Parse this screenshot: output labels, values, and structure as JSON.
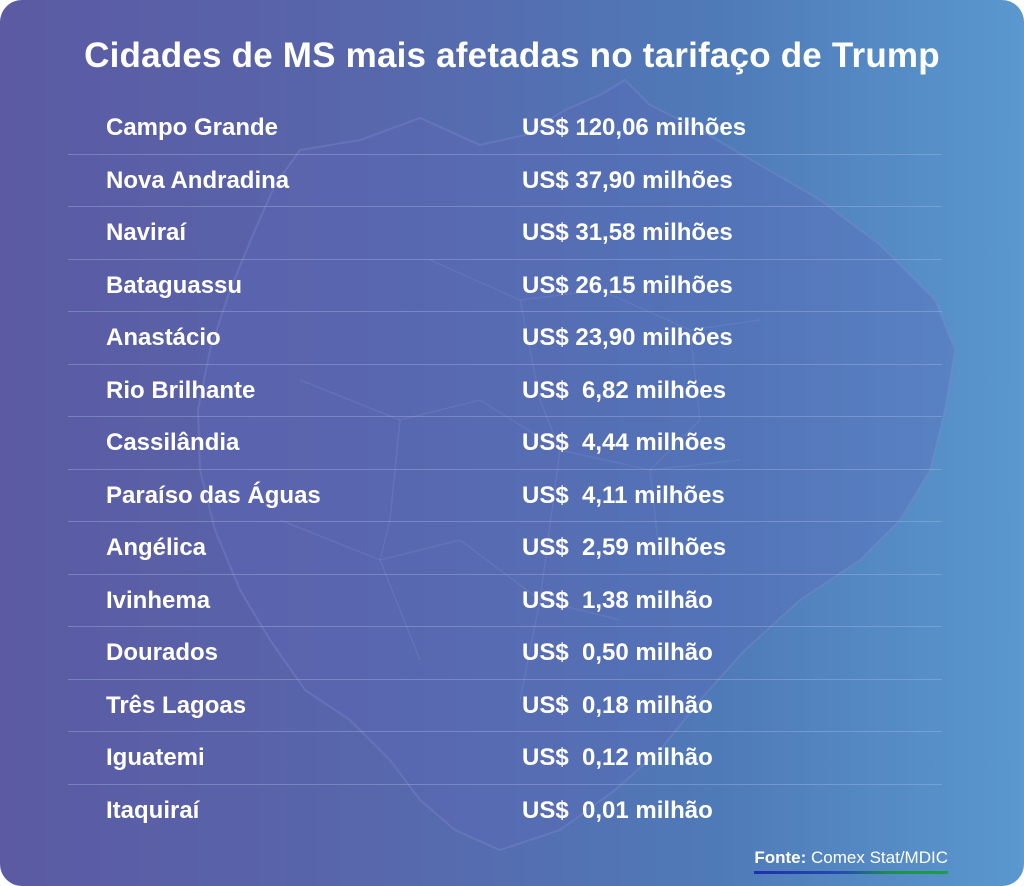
{
  "chart_data": {
    "type": "table",
    "title": "Cidades de MS mais afetadas no tarifaço de Trump",
    "columns": [
      "",
      ""
    ],
    "rows": [
      {
        "city": "Campo Grande",
        "value_text": "US$ 120,06 milhões",
        "value": 120.06
      },
      {
        "city": "Nova Andradina",
        "value_text": "US$ 37,90 milhões",
        "value": 37.9
      },
      {
        "city": "Naviraí",
        "value_text": "US$ 31,58 milhões",
        "value": 31.58
      },
      {
        "city": "Bataguassu",
        "value_text": "US$ 26,15 milhões",
        "value": 26.15
      },
      {
        "city": "Anastácio",
        "value_text": "US$ 23,90 milhões",
        "value": 23.9
      },
      {
        "city": "Rio Brilhante",
        "value_text": "US$  6,82 milhões",
        "value": 6.82
      },
      {
        "city": "Cassilândia",
        "value_text": "US$  4,44 milhões",
        "value": 4.44
      },
      {
        "city": "Paraíso das Águas",
        "value_text": "US$  4,11 milhões",
        "value": 4.11
      },
      {
        "city": "Angélica",
        "value_text": "US$  2,59 milhões",
        "value": 2.59
      },
      {
        "city": "Ivinhema",
        "value_text": "US$  1,38 milhão",
        "value": 1.38
      },
      {
        "city": "Dourados",
        "value_text": "US$  0,50 milhão",
        "value": 0.5
      },
      {
        "city": "Três Lagoas",
        "value_text": "US$  0,18 milhão",
        "value": 0.18
      },
      {
        "city": "Iguatemi",
        "value_text": "US$  0,12 milhão",
        "value": 0.12
      },
      {
        "city": "Itaquiraí",
        "value_text": "US$  0,01 milhão",
        "value": 0.01
      }
    ],
    "source_label": "Fonte:",
    "source_text": "Comex Stat/MDIC"
  },
  "colors": {
    "background_left": "#5b5aa3",
    "background_right": "#5a98cf",
    "text": "#ffffff"
  }
}
